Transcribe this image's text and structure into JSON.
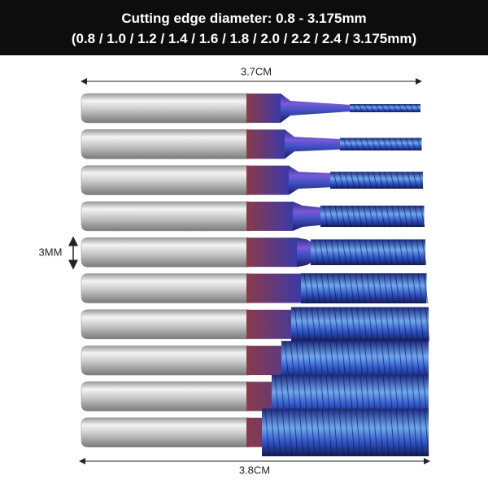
{
  "header": {
    "lines": [
      "Cutting edge diameter: 0.8 - 3.175mm",
      "(0.8 / 1.0 / 1.2 / 1.4 / 1.6 / 1.8 / 2.0 / 2.2 / 2.4 / 3.175mm)"
    ]
  },
  "dimensions": {
    "top": "3.7CM",
    "side": "3MM",
    "bottom": "3.8CM"
  }
}
